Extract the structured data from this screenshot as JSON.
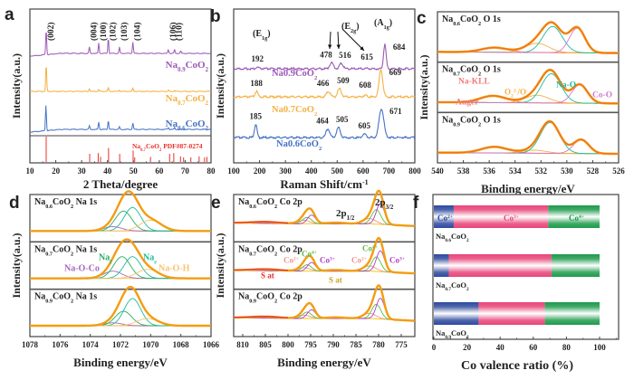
{
  "figure": {
    "panel_letters": [
      "a",
      "b",
      "c",
      "d",
      "e",
      "f"
    ]
  },
  "chart_data": [
    {
      "panel": "a",
      "type": "line",
      "title": "",
      "xlabel": "2 Theta/degree",
      "ylabel": "Intensity(a.u.)",
      "xlim": [
        10,
        80
      ],
      "xticks": [
        10,
        20,
        30,
        40,
        50,
        60,
        70,
        80
      ],
      "hkl_labels": [
        {
          "text": "(002)",
          "x": 16.3
        },
        {
          "text": "(004)",
          "x": 33.0
        },
        {
          "text": "(100)",
          "x": 36.6
        },
        {
          "text": "(102)",
          "x": 40.3
        },
        {
          "text": "(103)",
          "x": 44.6
        },
        {
          "text": "(104)",
          "x": 49.8
        },
        {
          "text": "(106)",
          "x": 63.5
        },
        {
          "text": "(110)",
          "x": 65.9
        }
      ],
      "series": [
        {
          "name": "Na0.9CoO2",
          "label_main": "Na",
          "label_sub": "0.9",
          "label_tail": "CoO",
          "label_sub2": "2",
          "color": "#9b59b6",
          "peaks": [
            [
              16.3,
              1.0
            ],
            [
              33.0,
              0.25
            ],
            [
              36.6,
              0.4
            ],
            [
              40.3,
              0.6
            ],
            [
              44.6,
              0.25
            ],
            [
              49.8,
              0.45
            ],
            [
              63.5,
              0.15
            ],
            [
              65.9,
              0.15
            ],
            [
              68.3,
              0.1
            ]
          ],
          "baseline_rise": true
        },
        {
          "name": "Na0.7CoO2",
          "label_main": "Na",
          "label_sub": "0.7",
          "label_tail": "CoO",
          "label_sub2": "2",
          "color": "#f5b041",
          "peaks": [
            [
              16.3,
              1.0
            ],
            [
              33.0,
              0.1
            ],
            [
              36.6,
              0.08
            ],
            [
              40.3,
              0.15
            ],
            [
              44.6,
              0.05
            ],
            [
              49.8,
              0.12
            ],
            [
              63.5,
              0.04
            ],
            [
              65.9,
              0.04
            ]
          ],
          "baseline_rise": false
        },
        {
          "name": "Na0.6CoO2",
          "label_main": "Na",
          "label_sub": "0.6",
          "label_tail": "CoO",
          "label_sub2": "2",
          "color": "#4472c4",
          "peaks": [
            [
              16.2,
              1.0
            ],
            [
              33.0,
              0.15
            ],
            [
              36.6,
              0.3
            ],
            [
              40.3,
              0.35
            ],
            [
              44.6,
              0.1
            ],
            [
              49.8,
              0.25
            ],
            [
              63.5,
              0.08
            ],
            [
              65.9,
              0.08
            ]
          ],
          "baseline_rise": true
        }
      ],
      "reference": {
        "name": "Na0.7CoO2 PDF#87-0274",
        "label_main": "Na",
        "label_sub": "0.7",
        "label_tail": "CoO",
        "label_sub2": "2",
        "label_pdf": "PDF#87-0274",
        "color": "#e8302a",
        "lines": [
          [
            16.3,
            1.0
          ],
          [
            33.1,
            0.32
          ],
          [
            36.4,
            0.35
          ],
          [
            37.3,
            0.2
          ],
          [
            40.4,
            0.55
          ],
          [
            44.7,
            0.32
          ],
          [
            49.9,
            0.45
          ],
          [
            50.5,
            0.18
          ],
          [
            56.6,
            0.2
          ],
          [
            64.0,
            0.32
          ],
          [
            65.6,
            0.35
          ],
          [
            68.2,
            0.22
          ],
          [
            69.4,
            0.18
          ],
          [
            72.2,
            0.18
          ],
          [
            75.4,
            0.22
          ],
          [
            77.5,
            0.18
          ],
          [
            78.4,
            0.2
          ]
        ]
      }
    },
    {
      "panel": "b",
      "type": "line",
      "xlabel": "Raman Shift/cm",
      "xlabel_sup": "-1",
      "ylabel": "Intensity(a.u.)",
      "xlim": [
        100,
        800
      ],
      "xticks": [
        100,
        200,
        300,
        400,
        500,
        600,
        700,
        800
      ],
      "mode_labels": [
        {
          "text": "(E",
          "sub": "1g",
          "tail": ")"
        },
        {
          "text": "(E",
          "sub": "2g",
          "tail": ")"
        },
        {
          "text": "(A",
          "sub": "1g",
          "tail": ")"
        }
      ],
      "series": [
        {
          "name": "Na0.9CoO2",
          "label_main": "Na",
          "label_tail": "0.9CoO",
          "label_sub2": "2",
          "color": "#9b59b6",
          "peaks": [
            [
              192,
              0.06
            ],
            [
              478,
              0.25
            ],
            [
              516,
              0.22
            ],
            [
              615,
              0.02
            ],
            [
              684,
              1.0
            ]
          ],
          "peak_labels": [
            "192",
            "478",
            "516",
            "615",
            "684"
          ]
        },
        {
          "name": "Na0.7CoO2",
          "label_main": "Na",
          "label_tail": "0.7CoO",
          "label_sub2": "2",
          "color": "#f5b041",
          "peaks": [
            [
              188,
              0.2
            ],
            [
              466,
              0.2
            ],
            [
              509,
              0.3
            ],
            [
              608,
              0.06
            ],
            [
              669,
              1.0
            ]
          ],
          "peak_labels": [
            "188",
            "466",
            "509",
            "608",
            "669"
          ]
        },
        {
          "name": "Na0.6CoO2",
          "label_main": "Na",
          "label_tail": "0.6CoO",
          "label_sub2": "2",
          "color": "#4472c4",
          "peaks": [
            [
              185,
              0.45
            ],
            [
              464,
              0.3
            ],
            [
              505,
              0.35
            ],
            [
              605,
              0.12
            ],
            [
              671,
              1.0
            ]
          ],
          "peak_labels": [
            "185",
            "464",
            "505",
            "605",
            "671"
          ]
        }
      ]
    },
    {
      "panel": "c",
      "type": "line",
      "title": "O 1s",
      "xlabel": "Binding energy/eV",
      "ylabel": "Intensity(a.u.)",
      "xlim": [
        540,
        526
      ],
      "xticks": [
        540,
        538,
        536,
        534,
        532,
        530,
        528,
        526
      ],
      "components": [
        {
          "name": "Na-KLL Auger",
          "color": "#f07a7a"
        },
        {
          "name": "O2 2-/O-",
          "color": "#f5b041"
        },
        {
          "name": "Na-O",
          "color": "#1abc9c"
        },
        {
          "name": "Co-O",
          "color": "#d17bd4"
        }
      ],
      "annotations": [
        "Na-KLL",
        "Auger",
        "O",
        "Na-O",
        "Co-O"
      ],
      "subplots": [
        {
          "sample": "Na0.6CoO2",
          "label_main": "Na",
          "label_sub": "0.6",
          "label_tail": "CoO",
          "label_sub2": "2",
          "core": "O 1s",
          "peaks": {
            "auger": [
              535.6,
              0.15
            ],
            "o22": [
              532.3,
              0.3
            ],
            "nao": [
              531.1,
              0.85
            ],
            "coo": [
              529.2,
              0.8
            ]
          }
        },
        {
          "sample": "Na0.7CoO2",
          "label_main": "Na",
          "label_sub": "0.7",
          "label_tail": "CoO",
          "label_sub2": "2",
          "core": "O 1s",
          "peaks": {
            "auger": [
              535.7,
              0.22
            ],
            "o22": [
              532.3,
              0.25
            ],
            "nao": [
              531.2,
              0.95
            ],
            "coo": [
              529.0,
              0.6
            ]
          }
        },
        {
          "sample": "Na0.9CoO2",
          "label_main": "Na",
          "label_sub": "0.9",
          "label_tail": "CoO",
          "label_sub2": "2",
          "core": "O 1s",
          "peaks": {
            "auger": [
              535.6,
              0.2
            ],
            "o22": [
              532.5,
              0.1
            ],
            "nao": [
              531.3,
              1.0
            ],
            "coo": [
              528.9,
              0.45
            ]
          }
        }
      ]
    },
    {
      "panel": "d",
      "type": "line",
      "title": "Na 1s",
      "xlabel": "Binding energy/eV",
      "ylabel": "Intensity(a.u.)",
      "xlim": [
        1078,
        1066
      ],
      "xticks": [
        1078,
        1076,
        1074,
        1072,
        1070,
        1068,
        1066
      ],
      "components": [
        {
          "name": "Na-O-Co",
          "color": "#a569bd"
        },
        {
          "name": "Naf",
          "color": "#27ae60"
        },
        {
          "name": "Nae",
          "color": "#1abc9c"
        },
        {
          "name": "Na-O-H",
          "color": "#f8c471"
        }
      ],
      "subplots": [
        {
          "sample": "Na0.6CoO2",
          "label_main": "Na",
          "label_sub": "0.6",
          "label_tail": "CoO",
          "label_sub2": "2",
          "core": "Na 1s",
          "peaks": {
            "naoco": [
              1072.5,
              0.12
            ],
            "naf": [
              1071.8,
              0.55
            ],
            "nae": [
              1071.2,
              0.65
            ],
            "naoh": [
              1070.0,
              0.3
            ]
          }
        },
        {
          "sample": "Na0.7CoO2",
          "label_main": "Na",
          "label_sub": "0.7",
          "label_tail": "CoO",
          "label_sub2": "2",
          "core": "Na 1s",
          "peaks": {
            "naoco": [
              1072.5,
              0.2
            ],
            "naf": [
              1071.9,
              0.6
            ],
            "nae": [
              1071.2,
              0.6
            ],
            "naoh": [
              1070.2,
              0.25
            ]
          }
        },
        {
          "sample": "Na0.9CoO2",
          "label_main": "Na",
          "label_sub": "0.9",
          "label_tail": "CoO",
          "label_sub2": "2",
          "core": "Na 1s",
          "peaks": {
            "naoco": [
              1072.5,
              0.08
            ],
            "naf": [
              1071.8,
              0.4
            ],
            "nae": [
              1071.2,
              0.75
            ],
            "naoh": [
              1070.2,
              0.2
            ]
          }
        }
      ],
      "annotations": [
        "Na",
        "f",
        "Na",
        "e",
        "Na-O-Co",
        "Na-O-H"
      ]
    },
    {
      "panel": "e",
      "type": "line",
      "title": "Co 2p",
      "xlabel": "Binding energy/eV",
      "ylabel": "Intensity(a.u.)",
      "xlim": [
        812,
        772
      ],
      "xticks": [
        810,
        805,
        800,
        795,
        790,
        785,
        780,
        775
      ],
      "peak_labels": [
        {
          "text": "2p",
          "sub": "1/2"
        },
        {
          "text": "2p",
          "sub": "3/2"
        }
      ],
      "components": [
        {
          "name": "Co2+",
          "color": "#f1948a"
        },
        {
          "name": "Co3+",
          "color": "#af3fc4"
        },
        {
          "name": "Co4+",
          "color": "#5dbb46"
        },
        {
          "name": "S at",
          "color": "#e8302a"
        },
        {
          "name": "S at",
          "color": "#c9a227"
        }
      ],
      "subplots": [
        {
          "sample": "Na0.6CoO2",
          "label_main": "Na",
          "label_sub": "0.6",
          "label_tail": "CoO",
          "label_sub2": "2",
          "core": "Co 2p"
        },
        {
          "sample": "Na0.7CoO2",
          "label_main": "Na",
          "label_sub": "0.7",
          "label_tail": "CoO",
          "label_sub2": "2",
          "core": "Co 2p"
        },
        {
          "sample": "Na0.9CoO2",
          "label_main": "Na",
          "label_sub": "0.9",
          "label_tail": "CoO",
          "label_sub2": "2",
          "core": "Co 2p"
        }
      ],
      "annotations": {
        "co2": "Co",
        "co2_sup": "2+",
        "co3": "Co",
        "co3_sup": "3+",
        "co4": "Co",
        "co4_sup": "4+",
        "sat": "S at"
      }
    },
    {
      "panel": "f",
      "type": "bar",
      "orientation": "horizontal",
      "stacked": true,
      "xlabel": "Co valence ratio (%)",
      "xlim": [
        0,
        110
      ],
      "xticks": [
        0,
        20,
        40,
        60,
        80,
        100
      ],
      "categories": [
        "Na0.6CoO2",
        "Na0.7CoO2",
        "Na0.9CoO2"
      ],
      "category_labels": [
        {
          "main": "Na",
          "sub": "0.6",
          "tail": "CoO",
          "sub2": "2"
        },
        {
          "main": "Na",
          "sub": "0.7",
          "tail": "CoO",
          "sub2": "2"
        },
        {
          "main": "Na",
          "sub": "0.9",
          "tail": "CoO",
          "sub2": "2"
        }
      ],
      "series": [
        {
          "name": "Co2+",
          "label": "Co",
          "sup": "2+",
          "color": "#2e4a9e",
          "values": [
            12,
            9,
            27
          ]
        },
        {
          "name": "Co3+",
          "label": "Co",
          "sup": "3+",
          "color": "#e8457a",
          "values": [
            57,
            62,
            40
          ]
        },
        {
          "name": "Co4+",
          "label": "Co",
          "sup": "4+",
          "color": "#1e9b4c",
          "values": [
            31,
            29,
            33
          ]
        }
      ]
    }
  ]
}
